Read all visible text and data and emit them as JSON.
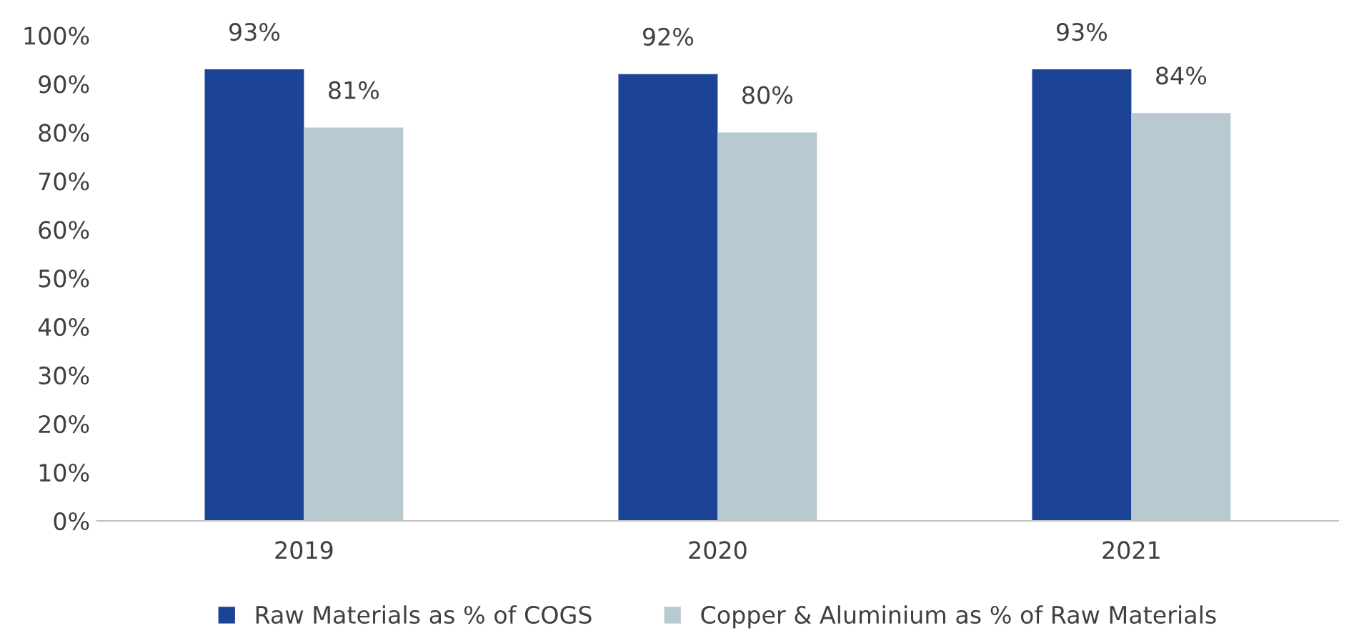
{
  "chart_data": {
    "type": "bar",
    "categories": [
      "2019",
      "2020",
      "2021"
    ],
    "series": [
      {
        "name": "Raw Materials as % of COGS",
        "color": "#1b4496",
        "values": [
          93,
          92,
          93
        ],
        "value_labels": [
          "93%",
          "92%",
          "93%"
        ]
      },
      {
        "name": "Copper & Aluminium as % of Raw Materials",
        "color": "#b8c9d2",
        "values": [
          81,
          80,
          84
        ],
        "value_labels": [
          "81%",
          "80%",
          "84%"
        ]
      }
    ],
    "ylim": [
      0,
      100
    ],
    "yticks": [
      {
        "value": 0,
        "label": "0%"
      },
      {
        "value": 10,
        "label": "10%"
      },
      {
        "value": 20,
        "label": "20%"
      },
      {
        "value": 30,
        "label": "30%"
      },
      {
        "value": 40,
        "label": "40%"
      },
      {
        "value": 50,
        "label": "50%"
      },
      {
        "value": 60,
        "label": "60%"
      },
      {
        "value": 70,
        "label": "70%"
      },
      {
        "value": 80,
        "label": "80%"
      },
      {
        "value": 90,
        "label": "90%"
      },
      {
        "value": 100,
        "label": "100%"
      }
    ],
    "grid": false,
    "legend": "bottom"
  }
}
